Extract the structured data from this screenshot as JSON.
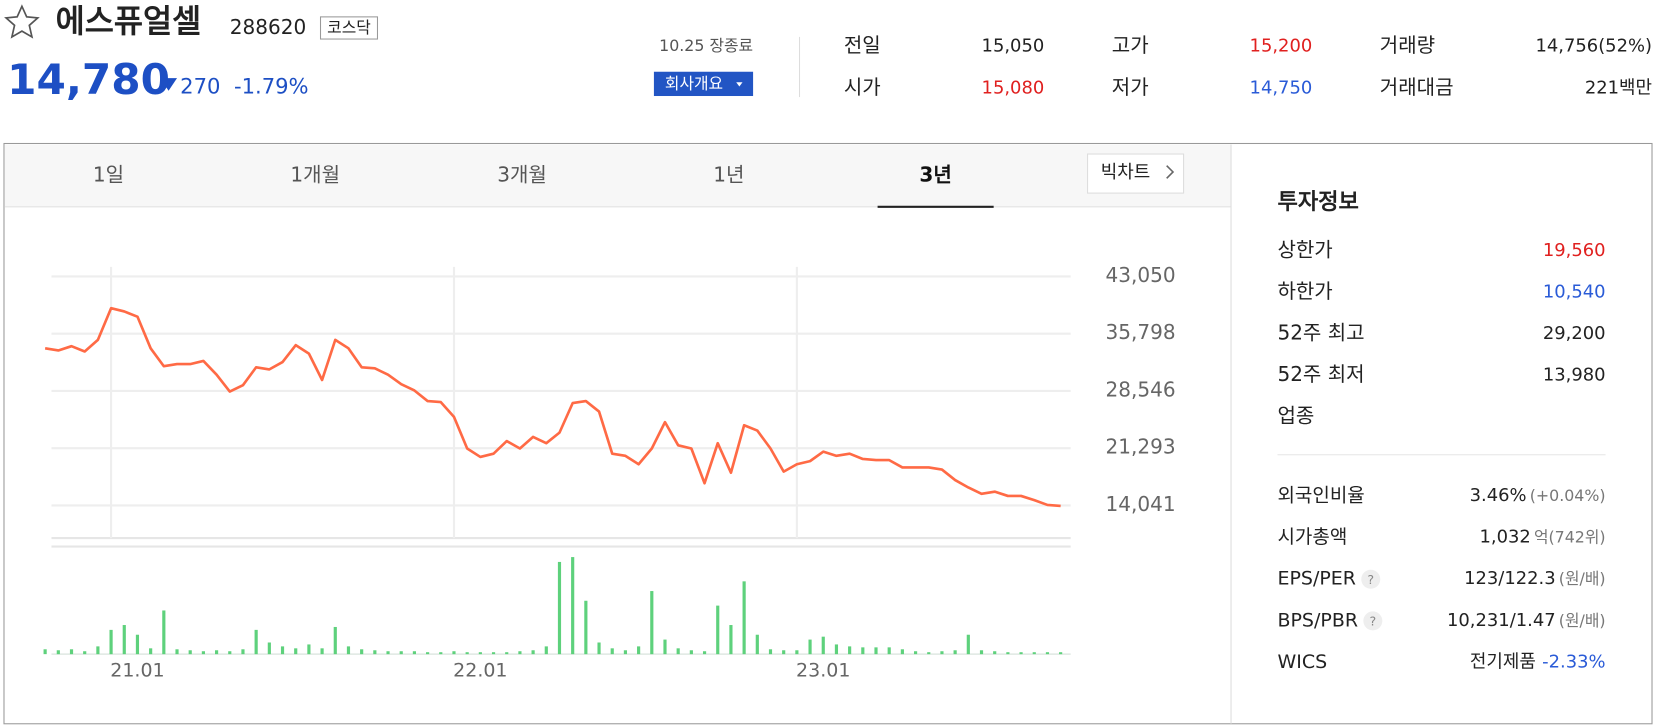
{
  "header": {
    "name": "에스퓨얼셀",
    "code": "288620",
    "market": "코스닥",
    "price": "14,780",
    "change": "270",
    "change_pct": "-1.79%",
    "status": "10.25 장종료",
    "company_button": "회사개요"
  },
  "quote": [
    {
      "label": "전일",
      "value": "15,050"
    },
    {
      "label": "고가",
      "value": "15,200",
      "color": "#e0201f"
    },
    {
      "label": "거래량",
      "value": "14,756(52%)"
    },
    {
      "label": "시가",
      "value": "15,080",
      "color": "#e0201f"
    },
    {
      "label": "저가",
      "value": "14,750",
      "color": "#2a5bd7"
    },
    {
      "label": "거래대금",
      "value": "221백만"
    }
  ],
  "tabs": {
    "items": [
      "1일",
      "1개월",
      "3개월",
      "1년",
      "3년"
    ],
    "active": 4,
    "big_chart": "빅차트"
  },
  "chart_data": [
    {
      "type": "line",
      "categories": [
        null,
        null,
        null,
        null,
        null,
        "21.01",
        null,
        null,
        null,
        null,
        null,
        null,
        null,
        null,
        null,
        null,
        null,
        null,
        null,
        null,
        null,
        null,
        null,
        null,
        null,
        null,
        null,
        null,
        null,
        null,
        null,
        "22.01",
        null,
        null,
        null,
        null,
        null,
        null,
        null,
        null,
        null,
        null,
        null,
        null,
        null,
        null,
        null,
        null,
        null,
        null,
        null,
        null,
        null,
        null,
        null,
        null,
        null,
        "23.01",
        null,
        null,
        null,
        null,
        null,
        null,
        null,
        null,
        null,
        null,
        null,
        null,
        null,
        null,
        null,
        null,
        null,
        null,
        null,
        null
      ],
      "series": [
        {
          "color": "#ff6a45",
          "values": [
            33940,
            33670,
            34210,
            33540,
            35010,
            39020,
            38610,
            37950,
            33940,
            31670,
            31940,
            31940,
            32340,
            30600,
            28460,
            29270,
            31540,
            31270,
            32200,
            34340,
            33270,
            29930,
            35010,
            33940,
            31540,
            31400,
            30600,
            29400,
            28600,
            27260,
            27130,
            25260,
            21250,
            20180,
            20590,
            22190,
            21250,
            22720,
            21920,
            23260,
            27000,
            27260,
            25930,
            20590,
            20320,
            19250,
            21250,
            24590,
            21650,
            21250,
            16850,
            21920,
            18180,
            24190,
            23520,
            21250,
            18320,
            19250,
            19650,
            20850,
            20320,
            20590,
            19920,
            19780,
            19780,
            18850,
            18850,
            18850,
            18580,
            17250,
            16310,
            15510,
            15780,
            15240,
            15240,
            14710,
            14100,
            13980
          ]
        }
      ],
      "ylim": [
        9900,
        44250
      ],
      "yticks": [
        {
          "value": 43050,
          "label": "43,050"
        },
        {
          "value": 35798,
          "label": "35,798"
        },
        {
          "value": 28546,
          "label": "28,546"
        },
        {
          "value": 21293,
          "label": "21,293"
        },
        {
          "value": 14041,
          "label": "14,041"
        }
      ],
      "grid": true
    },
    {
      "type": "bar",
      "color": "#5ed17c",
      "ylim": [
        0,
        100
      ],
      "values": [
        5,
        4,
        5,
        3,
        8,
        25,
        30,
        20,
        6,
        45,
        5,
        4,
        3,
        4,
        3,
        5,
        25,
        12,
        8,
        6,
        10,
        6,
        28,
        8,
        5,
        4,
        3,
        3,
        3,
        2,
        2,
        3,
        2,
        2,
        2,
        2,
        3,
        4,
        8,
        95,
        100,
        55,
        12,
        6,
        4,
        8,
        65,
        15,
        6,
        4,
        3,
        50,
        30,
        75,
        20,
        5,
        4,
        4,
        15,
        18,
        10,
        8,
        7,
        7,
        7,
        5,
        3,
        2,
        3,
        4,
        20,
        4,
        3,
        2,
        2,
        2,
        2,
        2
      ]
    }
  ],
  "invest": {
    "title": "투자정보",
    "rows": [
      {
        "label": "상한가",
        "value": "19,560",
        "color": "#e0201f"
      },
      {
        "label": "하한가",
        "value": "10,540",
        "color": "#2a5bd7"
      },
      {
        "label": "52주 최고",
        "value": "29,200"
      },
      {
        "label": "52주 최저",
        "value": "13,980"
      },
      {
        "label": "업종"
      }
    ],
    "rows2": [
      {
        "label": "외국인비율",
        "value": "3.46%",
        "unit": "(+0.04%)"
      },
      {
        "label": "시가총액",
        "value": "1,032",
        "unit": "억(742위)"
      },
      {
        "label": "EPS/PER",
        "help": "?",
        "value": "123/122.3",
        "unit": "(원/배)"
      },
      {
        "label": "BPS/PBR",
        "help": "?",
        "value": "10,231/1.47",
        "unit": "(원/배)"
      },
      {
        "label": "WICS",
        "value": "전기제품",
        "sub": "-2.33%",
        "sub_color": "#2a5bd7"
      }
    ]
  }
}
